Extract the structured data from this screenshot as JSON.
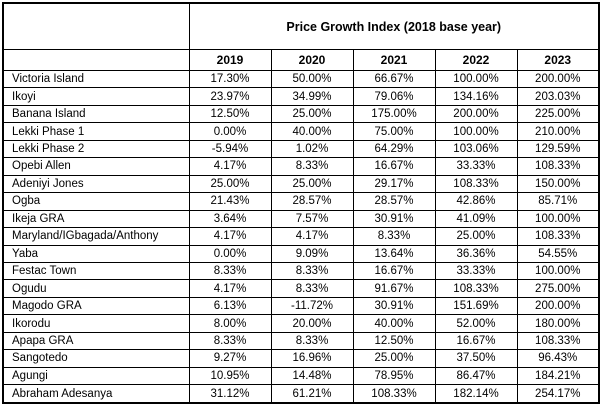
{
  "chart_data": {
    "type": "table",
    "title": "Price Growth Index (2018 base year)",
    "corner_label": "",
    "columns": [
      "2019",
      "2020",
      "2021",
      "2022",
      "2023"
    ],
    "rows": [
      {
        "label": "Victoria Island",
        "values": [
          "17.30%",
          "50.00%",
          "66.67%",
          "100.00%",
          "200.00%"
        ]
      },
      {
        "label": "Ikoyi",
        "values": [
          "23.97%",
          "34.99%",
          "79.06%",
          "134.16%",
          "203.03%"
        ]
      },
      {
        "label": "Banana Island",
        "values": [
          "12.50%",
          "25.00%",
          "175.00%",
          "200.00%",
          "225.00%"
        ]
      },
      {
        "label": "Lekki Phase 1",
        "values": [
          "0.00%",
          "40.00%",
          "75.00%",
          "100.00%",
          "210.00%"
        ]
      },
      {
        "label": "Lekki Phase 2",
        "values": [
          "-5.94%",
          "1.02%",
          "64.29%",
          "103.06%",
          "129.59%"
        ]
      },
      {
        "label": "Opebi Allen",
        "values": [
          "4.17%",
          "8.33%",
          "16.67%",
          "33.33%",
          "108.33%"
        ]
      },
      {
        "label": "Adeniyi Jones",
        "values": [
          "25.00%",
          "25.00%",
          "29.17%",
          "108.33%",
          "150.00%"
        ]
      },
      {
        "label": "Ogba",
        "values": [
          "21.43%",
          "28.57%",
          "28.57%",
          "42.86%",
          "85.71%"
        ]
      },
      {
        "label": "Ikeja GRA",
        "values": [
          "3.64%",
          "7.57%",
          "30.91%",
          "41.09%",
          "100.00%"
        ]
      },
      {
        "label": "Maryland/IGbagada/Anthony",
        "values": [
          "4.17%",
          "4.17%",
          "8.33%",
          "25.00%",
          "108.33%"
        ]
      },
      {
        "label": "Yaba",
        "values": [
          "0.00%",
          "9.09%",
          "13.64%",
          "36.36%",
          "54.55%"
        ]
      },
      {
        "label": "Festac Town",
        "values": [
          "8.33%",
          "8.33%",
          "16.67%",
          "33.33%",
          "100.00%"
        ]
      },
      {
        "label": "Ogudu",
        "values": [
          "4.17%",
          "8.33%",
          "91.67%",
          "108.33%",
          "275.00%"
        ]
      },
      {
        "label": "Magodo GRA",
        "values": [
          "6.13%",
          "-11.72%",
          "30.91%",
          "151.69%",
          "200.00%"
        ]
      },
      {
        "label": "Ikorodu",
        "values": [
          "8.00%",
          "20.00%",
          "40.00%",
          "52.00%",
          "180.00%"
        ]
      },
      {
        "label": "Apapa GRA",
        "values": [
          "8.33%",
          "8.33%",
          "12.50%",
          "16.67%",
          "108.33%"
        ]
      },
      {
        "label": "Sangotedo",
        "values": [
          "9.27%",
          "16.96%",
          "25.00%",
          "37.50%",
          "96.43%"
        ]
      },
      {
        "label": "Agungi",
        "values": [
          "10.95%",
          "14.48%",
          "78.95%",
          "86.47%",
          "184.21%"
        ]
      },
      {
        "label": "Abraham Adesanya",
        "values": [
          "31.12%",
          "61.21%",
          "108.33%",
          "182.14%",
          "254.17%"
        ]
      }
    ],
    "layout": {
      "legend": "none",
      "grid": "all-borders",
      "border_color": "#000000",
      "text_color": "#000000",
      "background_color": "#ffffff"
    }
  }
}
